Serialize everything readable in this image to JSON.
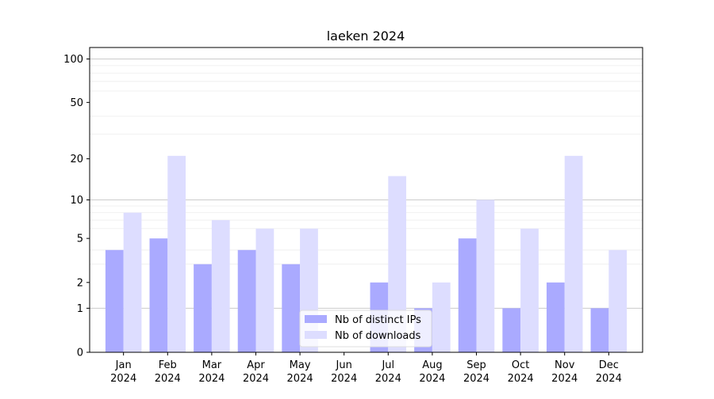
{
  "chart_data": {
    "type": "bar",
    "title": "laeken 2024",
    "xlabel": "",
    "ylabel": "",
    "yscale": "log(1+y)",
    "ylim": [
      0,
      120
    ],
    "yticks": [
      0,
      1,
      2,
      5,
      10,
      20,
      50,
      100
    ],
    "categories": [
      {
        "month": "Jan",
        "year": "2024"
      },
      {
        "month": "Feb",
        "year": "2024"
      },
      {
        "month": "Mar",
        "year": "2024"
      },
      {
        "month": "Apr",
        "year": "2024"
      },
      {
        "month": "May",
        "year": "2024"
      },
      {
        "month": "Jun",
        "year": "2024"
      },
      {
        "month": "Jul",
        "year": "2024"
      },
      {
        "month": "Aug",
        "year": "2024"
      },
      {
        "month": "Sep",
        "year": "2024"
      },
      {
        "month": "Oct",
        "year": "2024"
      },
      {
        "month": "Nov",
        "year": "2024"
      },
      {
        "month": "Dec",
        "year": "2024"
      }
    ],
    "series": [
      {
        "name": "Nb of distinct IPs",
        "color": "#aaaaff",
        "values": [
          4,
          5,
          3,
          4,
          3,
          0,
          2,
          1,
          5,
          1,
          2,
          1
        ]
      },
      {
        "name": "Nb of downloads",
        "color": "#ddddff",
        "values": [
          8,
          21,
          7,
          6,
          6,
          0,
          15,
          2,
          10,
          6,
          21,
          4
        ]
      }
    ],
    "grid": true,
    "legend_position": "bottom-center"
  }
}
